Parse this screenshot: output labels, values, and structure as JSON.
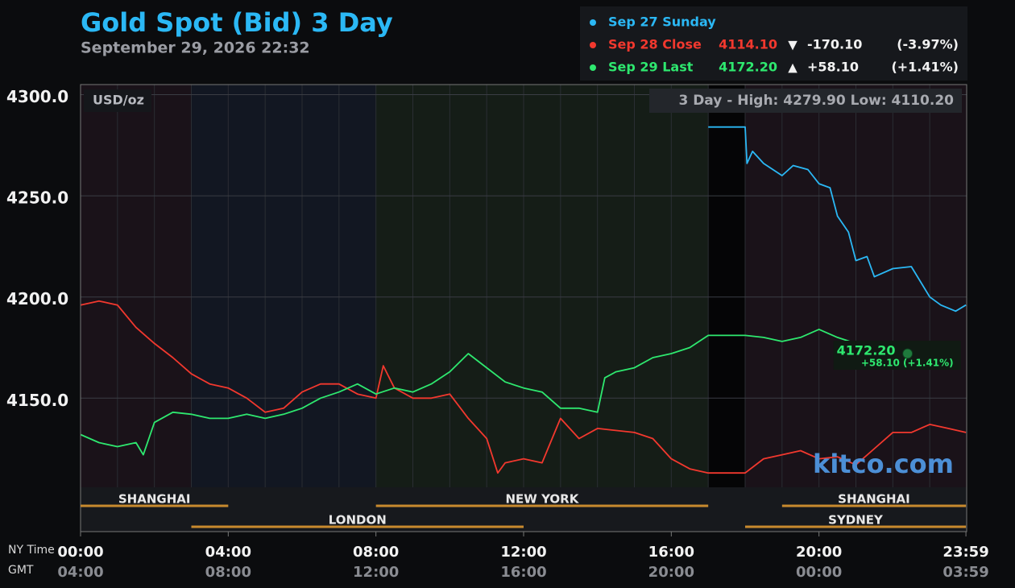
{
  "chart_data": {
    "type": "line",
    "title": "Gold Spot (Bid) 3 Day",
    "subtitle": "September 29, 2026 22:32",
    "unit_label": "USD/oz",
    "stats": "3 Day - High: 4279.90  Low: 4110.20",
    "watermark": "kitco.com",
    "x_row_label": "NY Time",
    "x2_row_label": "GMT",
    "xlim": [
      0,
      24
    ],
    "xticks": [
      {
        "value": 0,
        "label": "00:00"
      },
      {
        "value": 4,
        "label": "04:00"
      },
      {
        "value": 8,
        "label": "08:00"
      },
      {
        "value": 12,
        "label": "12:00"
      },
      {
        "value": 16,
        "label": "16:00"
      },
      {
        "value": 20,
        "label": "20:00"
      },
      {
        "value": 23.98,
        "label": "23:59"
      }
    ],
    "x2tick_labels": [
      "04:00",
      "08:00",
      "12:00",
      "16:00",
      "20:00",
      "00:00",
      "03:59"
    ],
    "ylim": [
      4084,
      4305
    ],
    "yticks": [
      {
        "value": 4150,
        "label": "4150.0"
      },
      {
        "value": 4200,
        "label": "4200.0"
      },
      {
        "value": 4250,
        "label": "4250.0"
      },
      {
        "value": 4300,
        "label": "4300.0"
      }
    ],
    "grid": true,
    "series": [
      {
        "name": "Sep 27 Sunday",
        "color": "#2bb8f5",
        "x": [
          17,
          18,
          18.05,
          18.2,
          18.5,
          19,
          19.3,
          19.7,
          20,
          20.3,
          20.5,
          20.8,
          21,
          21.3,
          21.5,
          22,
          22.5,
          23,
          23.3,
          23.7,
          23.98
        ],
        "values": [
          4284,
          4284,
          4266,
          4272,
          4266,
          4260,
          4265,
          4263,
          4256,
          4254,
          4240,
          4232,
          4218,
          4220,
          4210,
          4214,
          4215,
          4200,
          4196,
          4193,
          4196
        ]
      },
      {
        "name": "Sep 28 Close",
        "color": "#f2382e",
        "summary": {
          "price": "4114.10",
          "arrow": "▼",
          "change": "-170.10",
          "pct": "(-3.97%)"
        },
        "x": [
          0,
          0.5,
          1,
          1.5,
          2,
          2.5,
          3,
          3.5,
          4,
          4.5,
          5,
          5.5,
          6,
          6.5,
          7,
          7.5,
          8,
          8.2,
          8.5,
          9,
          9.5,
          10,
          10.5,
          11,
          11.3,
          11.5,
          12,
          12.5,
          13,
          13.5,
          14,
          15,
          15.5,
          16,
          16.5,
          17,
          18,
          18.5,
          19,
          19.5,
          20,
          20.5,
          21,
          21.5,
          22,
          22.5,
          23,
          23.5,
          23.98
        ],
        "values": [
          4196,
          4198,
          4196,
          4185,
          4177,
          4170,
          4162,
          4157,
          4155,
          4150,
          4143,
          4145,
          4153,
          4157,
          4157,
          4152,
          4150,
          4166,
          4155,
          4150,
          4150,
          4152,
          4140,
          4130,
          4113,
          4118,
          4120,
          4118,
          4140,
          4130,
          4135,
          4133,
          4130,
          4120,
          4115,
          4113,
          4113,
          4120,
          4122,
          4124,
          4120,
          4121,
          4117,
          4125,
          4133,
          4133,
          4137,
          4135,
          4133
        ]
      },
      {
        "name": "Sep 29 Last",
        "color": "#2ee86f",
        "summary": {
          "price": "4172.20",
          "arrow": "▲",
          "change": "+58.10",
          "pct": "(+1.41%)"
        },
        "last_label": "4172.20",
        "last_change": "+58.10 (+1.41%)",
        "x": [
          0,
          0.5,
          1,
          1.5,
          1.7,
          2,
          2.5,
          3,
          3.5,
          4,
          4.5,
          5,
          5.5,
          6,
          6.5,
          7,
          7.5,
          8,
          8.5,
          9,
          9.5,
          10,
          10.5,
          11,
          11.5,
          12,
          12.5,
          13,
          13.5,
          14,
          14.2,
          14.5,
          15,
          15.5,
          16,
          16.5,
          17,
          18,
          18.5,
          19,
          19.5,
          20,
          20.5,
          21,
          21.5,
          22,
          22.4
        ],
        "values": [
          4132,
          4128,
          4126,
          4128,
          4122,
          4138,
          4143,
          4142,
          4140,
          4140,
          4142,
          4140,
          4142,
          4145,
          4150,
          4153,
          4157,
          4152,
          4155,
          4153,
          4157,
          4163,
          4172,
          4165,
          4158,
          4155,
          4153,
          4145,
          4145,
          4143,
          4160,
          4163,
          4165,
          4170,
          4172,
          4175,
          4181,
          4181,
          4180,
          4178,
          4180,
          4184,
          4180,
          4177,
          null,
          4177,
          4172
        ]
      }
    ],
    "sessions": [
      {
        "name": "SHANGHAI",
        "start": 0,
        "end": 4,
        "row": 0
      },
      {
        "name": "NEW YORK",
        "start": 8,
        "end": 17,
        "row": 0
      },
      {
        "name": "SHANGHAI",
        "start": 19,
        "end": 23.98,
        "row": 0
      },
      {
        "name": "LONDON",
        "start": 3,
        "end": 12,
        "row": 1
      },
      {
        "name": "SYDNEY",
        "start": 18,
        "end": 23.98,
        "row": 1
      }
    ]
  }
}
